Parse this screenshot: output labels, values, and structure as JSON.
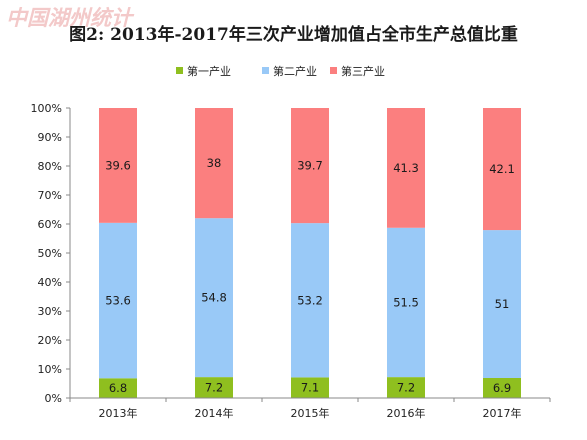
{
  "watermark": "中国湖州统计",
  "chart_data": {
    "type": "bar",
    "stacked": true,
    "title": "图2: 2013年-2017年三次产业增加值占全市生产总值比重",
    "categories": [
      "2013年",
      "2014年",
      "2015年",
      "2016年",
      "2017年"
    ],
    "series": [
      {
        "name": "第一产业",
        "values": [
          6.8,
          7.2,
          7.1,
          7.2,
          6.9
        ],
        "color": "#8fbf1f"
      },
      {
        "name": "第二产业",
        "values": [
          53.6,
          54.8,
          53.2,
          51.5,
          51
        ],
        "color": "#99c9f7"
      },
      {
        "name": "第三产业",
        "values": [
          39.6,
          38,
          39.7,
          41.3,
          42.1
        ],
        "color": "#fb7f7f"
      }
    ],
    "ylim": [
      0,
      100
    ],
    "yticks": [
      "0%",
      "10%",
      "20%",
      "30%",
      "40%",
      "50%",
      "60%",
      "70%",
      "80%",
      "90%",
      "100%"
    ],
    "grid": false,
    "legend": "top-center",
    "xlabel": "",
    "ylabel": ""
  }
}
